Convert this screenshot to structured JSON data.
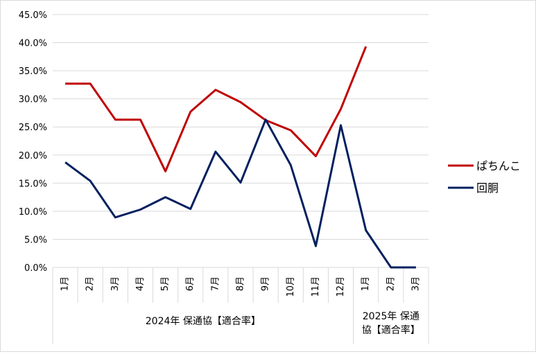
{
  "chart_data": {
    "type": "line",
    "ylim": [
      0,
      45
    ],
    "yticks": [
      0,
      5,
      10,
      15,
      20,
      25,
      30,
      35,
      40,
      45
    ],
    "ytick_labels": [
      "0.0%",
      "5.0%",
      "10.0%",
      "15.0%",
      "20.0%",
      "25.0%",
      "30.0%",
      "35.0%",
      "40.0%",
      "45.0%"
    ],
    "categories": [
      "1月",
      "2月",
      "3月",
      "4月",
      "5月",
      "6月",
      "7月",
      "8月",
      "9月",
      "10月",
      "11月",
      "12月",
      "1月",
      "2月",
      "3月"
    ],
    "groups": [
      {
        "label_lines": [
          "2024年 保通協【適合率】"
        ],
        "count": 12
      },
      {
        "label_lines": [
          "2025年 保通",
          "協【適合率】"
        ],
        "count": 3
      }
    ],
    "grid": true,
    "legend_position": "right",
    "series": [
      {
        "name": "ぱちんこ",
        "color": "#c00000",
        "values": [
          32.7,
          32.7,
          26.3,
          26.3,
          17.1,
          27.7,
          31.6,
          29.4,
          26.2,
          24.4,
          19.8,
          28.2,
          39.3,
          null,
          null
        ]
      },
      {
        "name": "回胴",
        "color": "#002060",
        "values": [
          18.7,
          15.4,
          8.9,
          10.3,
          12.5,
          10.4,
          20.6,
          15.1,
          26.3,
          18.2,
          3.8,
          25.3,
          6.6,
          0.0,
          0.0
        ]
      }
    ]
  }
}
